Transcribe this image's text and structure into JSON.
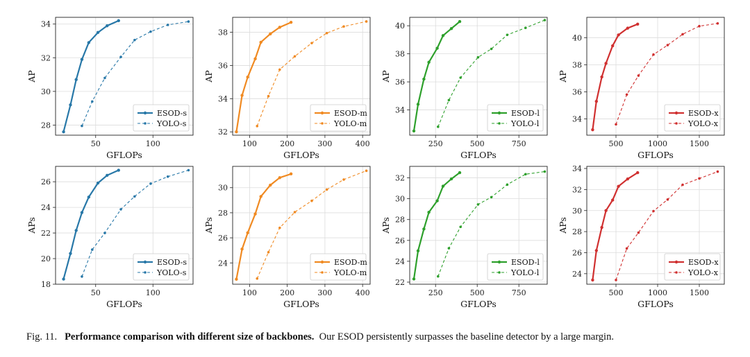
{
  "caption": {
    "label": "Fig. 11.",
    "bold": "Performance comparison with different size of backbones.",
    "text": "Our ESOD persistently surpasses the baseline detector by a large margin."
  },
  "colors": {
    "s": "#2878a8",
    "m": "#f08a22",
    "l": "#2ea02c",
    "x": "#d03030"
  },
  "chart_data": [
    {
      "type": "line",
      "xlabel": "GFLOPs",
      "ylabel": "AP",
      "color_key": "s",
      "xlim": [
        15,
        135
      ],
      "xticks": [
        50,
        100
      ],
      "ylim": [
        27.4,
        34.4
      ],
      "yticks": [
        28,
        30,
        32,
        34
      ],
      "legend": "bottom-right",
      "series": [
        {
          "name": "ESOD-s",
          "style": "solid",
          "x": [
            22,
            28,
            33,
            38,
            44,
            52,
            60,
            70
          ],
          "y": [
            27.6,
            29.2,
            30.7,
            31.9,
            32.9,
            33.5,
            33.9,
            34.2
          ]
        },
        {
          "name": "YOLO-s",
          "style": "dashed",
          "x": [
            38,
            47,
            58,
            72,
            84,
            98,
            113,
            131
          ],
          "y": [
            27.95,
            29.4,
            30.8,
            32.05,
            33.05,
            33.55,
            33.95,
            34.15
          ]
        }
      ]
    },
    {
      "type": "line",
      "xlabel": "GFLOPs",
      "ylabel": "AP",
      "color_key": "m",
      "xlim": [
        55,
        420
      ],
      "xticks": [
        100,
        200,
        300,
        400
      ],
      "ylim": [
        31.8,
        38.9
      ],
      "yticks": [
        32,
        34,
        36,
        38
      ],
      "legend": "bottom-right",
      "series": [
        {
          "name": "ESOD-m",
          "style": "solid",
          "x": [
            65,
            80,
            95,
            115,
            130,
            155,
            180,
            210
          ],
          "y": [
            32.0,
            34.2,
            35.3,
            36.4,
            37.4,
            37.9,
            38.3,
            38.6
          ]
        },
        {
          "name": "YOLO-m",
          "style": "dashed",
          "x": [
            120,
            150,
            180,
            220,
            265,
            305,
            350,
            410
          ],
          "y": [
            32.35,
            34.15,
            35.75,
            36.55,
            37.35,
            37.95,
            38.35,
            38.65
          ]
        }
      ]
    },
    {
      "type": "line",
      "xlabel": "GFLOPs",
      "ylabel": "AP",
      "color_key": "l",
      "xlim": [
        95,
        920
      ],
      "xticks": [
        250,
        500,
        750
      ],
      "ylim": [
        32.2,
        40.6
      ],
      "yticks": [
        34,
        36,
        38,
        40
      ],
      "legend": "bottom-right",
      "series": [
        {
          "name": "ESOD-l",
          "style": "solid",
          "x": [
            120,
            145,
            180,
            210,
            260,
            295,
            345,
            395
          ],
          "y": [
            32.5,
            34.4,
            36.2,
            37.4,
            38.4,
            39.3,
            39.8,
            40.3
          ]
        },
        {
          "name": "YOLO-l",
          "style": "dashed",
          "x": [
            265,
            330,
            400,
            505,
            585,
            680,
            790,
            905
          ],
          "y": [
            32.8,
            34.7,
            36.3,
            37.75,
            38.35,
            39.35,
            39.85,
            40.4
          ]
        }
      ]
    },
    {
      "type": "line",
      "xlabel": "GFLOPs",
      "ylabel": "AP",
      "color_key": "x",
      "xlim": [
        150,
        1800
      ],
      "xticks": [
        500,
        1000,
        1500
      ],
      "ylim": [
        32.8,
        41.5
      ],
      "yticks": [
        34,
        36,
        38,
        40
      ],
      "legend": "bottom-right",
      "series": [
        {
          "name": "ESOD-x",
          "style": "solid",
          "x": [
            220,
            265,
            330,
            380,
            460,
            530,
            640,
            760
          ],
          "y": [
            33.2,
            35.3,
            37.1,
            38.1,
            39.4,
            40.2,
            40.7,
            41.0
          ]
        },
        {
          "name": "YOLO-x",
          "style": "dashed",
          "x": [
            500,
            630,
            770,
            950,
            1120,
            1300,
            1500,
            1720
          ],
          "y": [
            33.6,
            35.8,
            37.2,
            38.75,
            39.45,
            40.25,
            40.85,
            41.05
          ]
        }
      ]
    },
    {
      "type": "line",
      "xlabel": "GFLOPs",
      "ylabel": "APs",
      "color_key": "s",
      "xlim": [
        15,
        135
      ],
      "xticks": [
        50,
        100
      ],
      "ylim": [
        18.0,
        27.2
      ],
      "yticks": [
        18,
        20,
        22,
        24,
        26
      ],
      "legend": "bottom-right",
      "series": [
        {
          "name": "ESOD-s",
          "style": "solid",
          "x": [
            22,
            28,
            33,
            38,
            44,
            52,
            60,
            70
          ],
          "y": [
            18.4,
            20.4,
            22.2,
            23.6,
            24.8,
            25.9,
            26.5,
            26.9
          ]
        },
        {
          "name": "YOLO-s",
          "style": "dashed",
          "x": [
            38,
            47,
            58,
            72,
            84,
            98,
            113,
            131
          ],
          "y": [
            18.6,
            20.7,
            22.0,
            23.85,
            24.85,
            25.85,
            26.4,
            26.9
          ]
        }
      ]
    },
    {
      "type": "line",
      "xlabel": "GFLOPs",
      "ylabel": "APs",
      "color_key": "m",
      "xlim": [
        55,
        420
      ],
      "xticks": [
        100,
        200,
        300,
        400
      ],
      "ylim": [
        22.3,
        31.7
      ],
      "yticks": [
        24,
        26,
        28,
        30
      ],
      "legend": "bottom-right",
      "series": [
        {
          "name": "ESOD-m",
          "style": "solid",
          "x": [
            65,
            80,
            95,
            115,
            130,
            155,
            180,
            210
          ],
          "y": [
            22.7,
            25.1,
            26.4,
            27.9,
            29.3,
            30.2,
            30.8,
            31.1
          ]
        },
        {
          "name": "YOLO-m",
          "style": "dashed",
          "x": [
            120,
            150,
            180,
            220,
            265,
            305,
            350,
            410
          ],
          "y": [
            22.75,
            24.85,
            26.8,
            28.05,
            28.95,
            29.85,
            30.65,
            31.35
          ]
        }
      ]
    },
    {
      "type": "line",
      "xlabel": "GFLOPs",
      "ylabel": "APs",
      "color_key": "l",
      "xlim": [
        95,
        920
      ],
      "xticks": [
        250,
        500,
        750
      ],
      "ylim": [
        21.8,
        33.1
      ],
      "yticks": [
        22,
        24,
        26,
        28,
        30,
        32
      ],
      "legend": "bottom-right",
      "series": [
        {
          "name": "ESOD-l",
          "style": "solid",
          "x": [
            120,
            145,
            180,
            210,
            260,
            295,
            345,
            395
          ],
          "y": [
            22.3,
            25.0,
            27.1,
            28.7,
            29.8,
            31.2,
            31.9,
            32.5
          ]
        },
        {
          "name": "YOLO-l",
          "style": "dashed",
          "x": [
            265,
            330,
            400,
            505,
            585,
            680,
            790,
            905
          ],
          "y": [
            22.55,
            25.25,
            27.3,
            29.45,
            30.15,
            31.35,
            32.35,
            32.6
          ]
        }
      ]
    },
    {
      "type": "line",
      "xlabel": "GFLOPs",
      "ylabel": "APs",
      "color_key": "x",
      "xlim": [
        150,
        1800
      ],
      "xticks": [
        500,
        1000,
        1500
      ],
      "ylim": [
        23.0,
        34.2
      ],
      "yticks": [
        24,
        26,
        28,
        30,
        32,
        34
      ],
      "legend": "bottom-right",
      "series": [
        {
          "name": "ESOD-x",
          "style": "solid",
          "x": [
            220,
            265,
            330,
            380,
            460,
            530,
            640,
            760
          ],
          "y": [
            23.4,
            26.2,
            28.4,
            30.0,
            31.0,
            32.3,
            33.0,
            33.6
          ]
        },
        {
          "name": "YOLO-x",
          "style": "dashed",
          "x": [
            500,
            630,
            770,
            950,
            1120,
            1300,
            1500,
            1720
          ],
          "y": [
            23.4,
            26.4,
            27.9,
            29.95,
            31.05,
            32.45,
            33.05,
            33.7
          ]
        }
      ]
    }
  ]
}
